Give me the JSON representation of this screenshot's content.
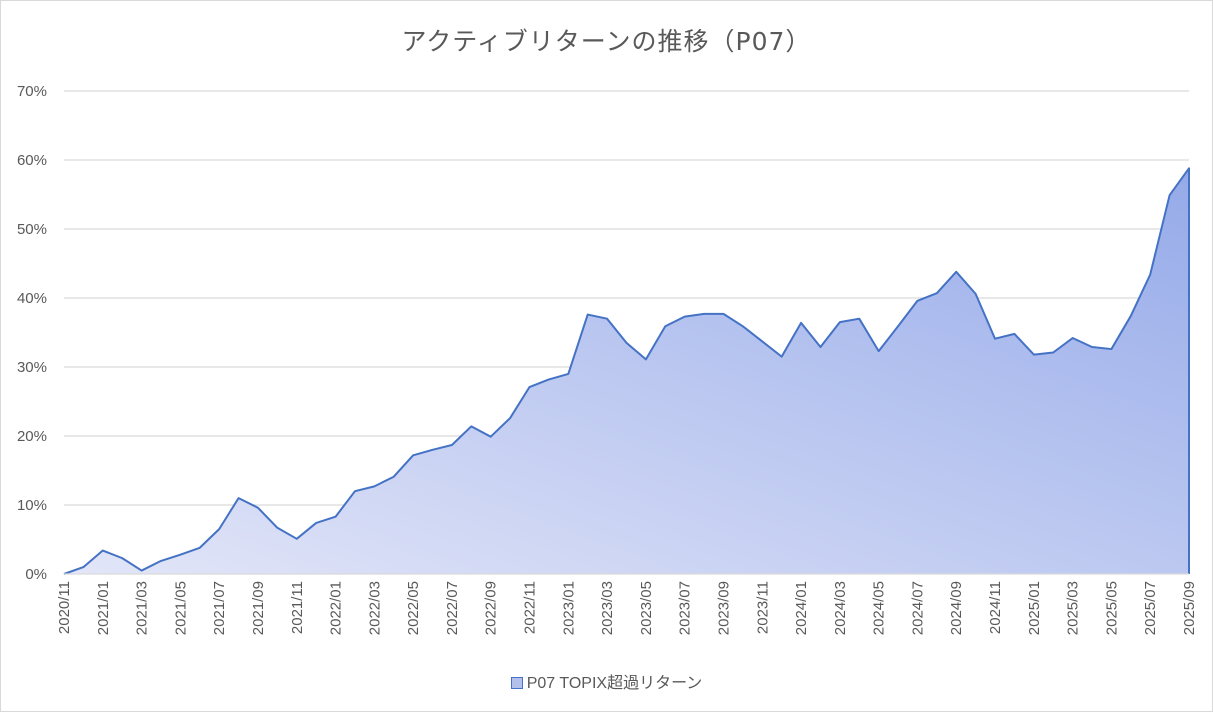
{
  "chart_data": {
    "type": "area",
    "title": "アクティブリターンの推移（P07）",
    "xlabel": "",
    "ylabel": "",
    "ylim": [
      0,
      70
    ],
    "yticks": [
      "0%",
      "10%",
      "20%",
      "30%",
      "40%",
      "50%",
      "60%",
      "70%"
    ],
    "ytick_values": [
      0,
      10,
      20,
      30,
      40,
      50,
      60,
      70
    ],
    "grid": true,
    "legend_position": "bottom",
    "colors": {
      "line": "#4472c4",
      "fill_light": "#e3e6f8",
      "fill_dark": "#95aae9",
      "grid": "#d9d9d9"
    },
    "x": [
      "2020/11",
      "2020/12",
      "2021/01",
      "2021/02",
      "2021/03",
      "2021/04",
      "2021/05",
      "2021/06",
      "2021/07",
      "2021/08",
      "2021/09",
      "2021/10",
      "2021/11",
      "2021/12",
      "2022/01",
      "2022/02",
      "2022/03",
      "2022/04",
      "2022/05",
      "2022/06",
      "2022/07",
      "2022/08",
      "2022/09",
      "2022/10",
      "2022/11",
      "2022/12",
      "2023/01",
      "2023/02",
      "2023/03",
      "2023/04",
      "2023/05",
      "2023/06",
      "2023/07",
      "2023/08",
      "2023/09",
      "2023/10",
      "2023/11",
      "2023/12",
      "2024/01",
      "2024/02",
      "2024/03",
      "2024/04",
      "2024/05",
      "2024/06",
      "2024/07",
      "2024/08",
      "2024/09",
      "2024/10",
      "2024/11",
      "2024/12",
      "2025/01",
      "2025/02",
      "2025/03",
      "2025/04",
      "2025/05",
      "2025/06",
      "2025/07",
      "2025/08",
      "2025/09"
    ],
    "xtick_labels": [
      "2020/11",
      "2021/01",
      "2021/03",
      "2021/05",
      "2021/07",
      "2021/09",
      "2021/11",
      "2022/01",
      "2022/03",
      "2022/05",
      "2022/07",
      "2022/09",
      "2022/11",
      "2023/01",
      "2023/03",
      "2023/05",
      "2023/07",
      "2023/09",
      "2023/11",
      "2024/01",
      "2024/03",
      "2024/05",
      "2024/07",
      "2024/09",
      "2024/11",
      "2025/01",
      "2025/03",
      "2025/05",
      "2025/07",
      "2025/09"
    ],
    "series": [
      {
        "name": "P07 TOPIX超過リターン",
        "values": [
          0.0,
          1.0,
          3.4,
          2.3,
          0.5,
          1.9,
          2.8,
          3.8,
          6.5,
          11.0,
          9.6,
          6.7,
          5.1,
          7.4,
          8.3,
          12.0,
          12.7,
          14.1,
          17.2,
          18.0,
          18.7,
          21.4,
          19.9,
          22.6,
          27.1,
          28.2,
          29.0,
          37.6,
          37.0,
          33.5,
          31.1,
          35.9,
          37.3,
          37.7,
          37.7,
          35.9,
          33.7,
          31.5,
          36.4,
          32.9,
          36.5,
          37.0,
          32.3,
          35.9,
          39.6,
          40.7,
          43.8,
          40.6,
          34.1,
          34.8,
          31.8,
          32.1,
          34.2,
          32.9,
          32.6,
          37.4,
          43.4,
          54.9,
          58.8
        ]
      }
    ]
  }
}
